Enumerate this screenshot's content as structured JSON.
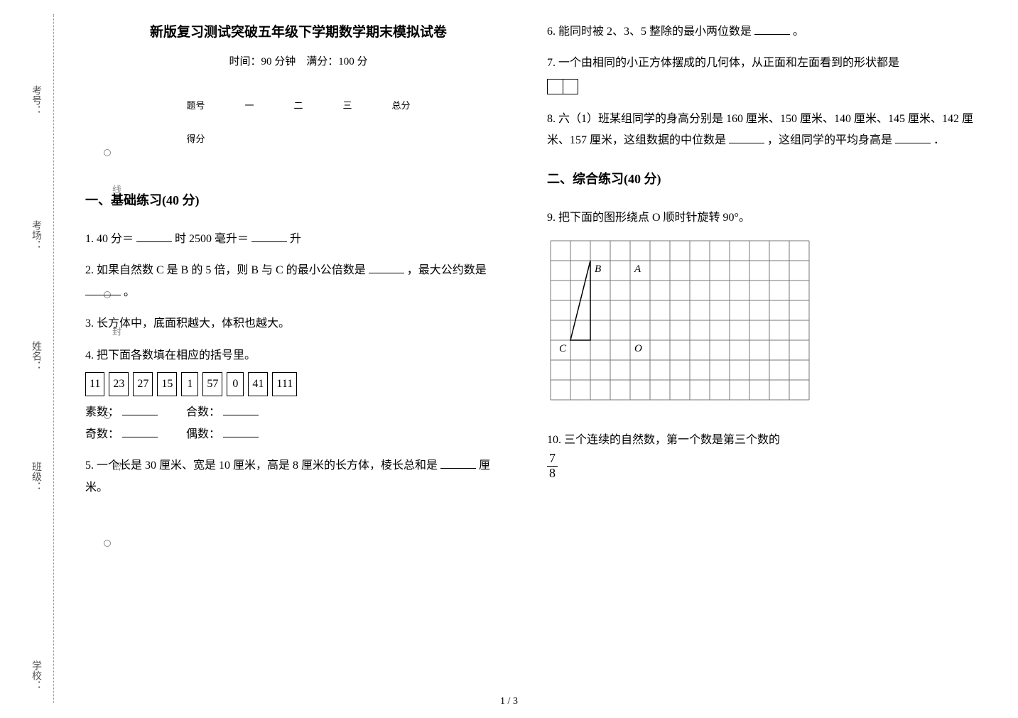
{
  "binding": {
    "labels": [
      "考号：",
      "考场：",
      "姓名：",
      "班级：",
      "学校："
    ],
    "cutline": "………○…………线…………○…………封…………○…………密…………○…………"
  },
  "title": "新版复习测试突破五年级下学期数学期末模拟试卷",
  "subtitle": "时间：90 分钟　满分：100 分",
  "scoreTable": {
    "headers": [
      "题号",
      "一",
      "二",
      "三",
      "总分"
    ],
    "row2label": "得分"
  },
  "sections": {
    "s1": "一、基础练习(40 分)",
    "s2": "二、综合练习(40 分)"
  },
  "questions": {
    "q1a": "1. 40 分＝",
    "q1b": "时 2500 毫升＝",
    "q1c": "升",
    "q2a": "2. 如果自然数 C 是 B 的 5 倍，则 B 与 C 的最小公倍数是",
    "q2b": "，最大公约数是",
    "q2c": "。",
    "q3": "3. 长方体中，底面积越大，体积也越大。",
    "q4": "4. 把下面各数填在相应的括号里。",
    "q4boxes": [
      "11",
      "23",
      "27",
      "15",
      "1",
      "57",
      "0",
      "41",
      "111"
    ],
    "q4l1": "素数：",
    "q4l2": "合数：",
    "q4l3": "奇数：",
    "q4l4": "偶数：",
    "q5a": "5. 一个长是 30 厘米、宽是 10 厘米，高是 8 厘米的长方体，棱长总和是",
    "q5b": "厘米。",
    "q6a": "6. 能同时被 2、3、5 整除的最小两位数是",
    "q6b": "。",
    "q7": "7. 一个由相同的小正方体摆成的几何体，从正面和左面看到的形状都是",
    "q8a": "8. 六（1）班某组同学的身高分别是 160 厘米、150 厘米、140 厘米、145 厘米、142 厘米、157 厘米，这组数据的中位数是",
    "q8b": "，这组同学的平均身高是",
    "q8c": "．",
    "q9": "9. 把下面的图形绕点 O 顺时针旋转 90°。",
    "q10": "10. 三个连续的自然数，第一个数是第三个数的",
    "q10frac": {
      "num": "7",
      "den": "8"
    }
  },
  "grid": {
    "cols": 13,
    "rows": 8,
    "cell": 28,
    "labels": {
      "B": "B",
      "A": "A",
      "C": "C",
      "O": "O"
    },
    "colors": {
      "line": "#777777",
      "shape": "#000000",
      "text": "#000000"
    }
  },
  "pageNumber": "1 / 3"
}
